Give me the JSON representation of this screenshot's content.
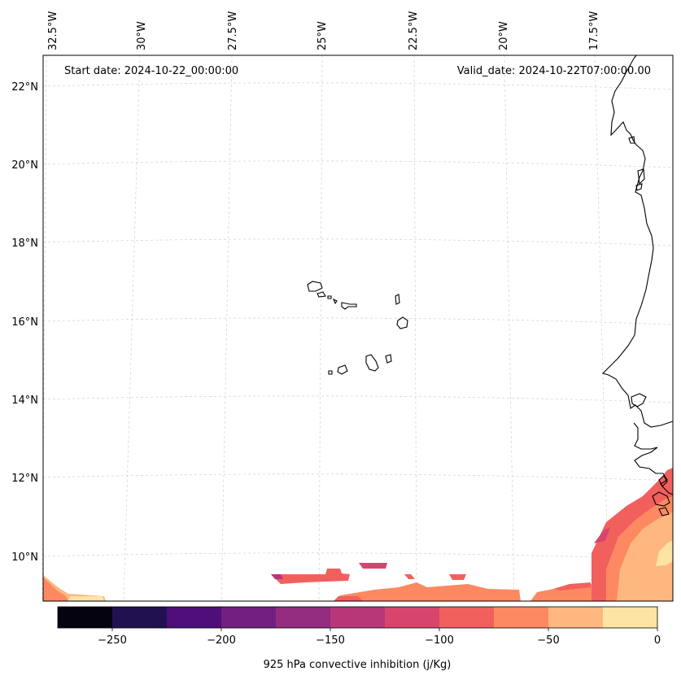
{
  "header": {
    "start_date": "Start date: 2024-10-22_00:00:00",
    "valid_date": "Valid_date: 2024-10-22T07:00:00.00"
  },
  "longitude_labels": [
    "32.5°W",
    "30°W",
    "27.5°W",
    "25°W",
    "22.5°W",
    "20°W",
    "17.5°W"
  ],
  "latitude_labels": [
    "22°N",
    "20°N",
    "18°N",
    "16°N",
    "14°N",
    "12°N",
    "10°N"
  ],
  "colorbar": {
    "label": "925 hPa convective inhibition (j/Kg)",
    "tick_labels": [
      "−250",
      "−200",
      "−150",
      "−100",
      "−50",
      "0"
    ],
    "levels": [
      -275,
      -250,
      -225,
      -200,
      -175,
      -150,
      -125,
      -100,
      -75,
      -50,
      -25,
      0
    ],
    "colors": [
      "#05030f",
      "#221150",
      "#4f0f7b",
      "#721f81",
      "#942c80",
      "#b73779",
      "#d8456c",
      "#f1605d",
      "#fc8961",
      "#feb77e",
      "#fde4a5"
    ]
  }
}
